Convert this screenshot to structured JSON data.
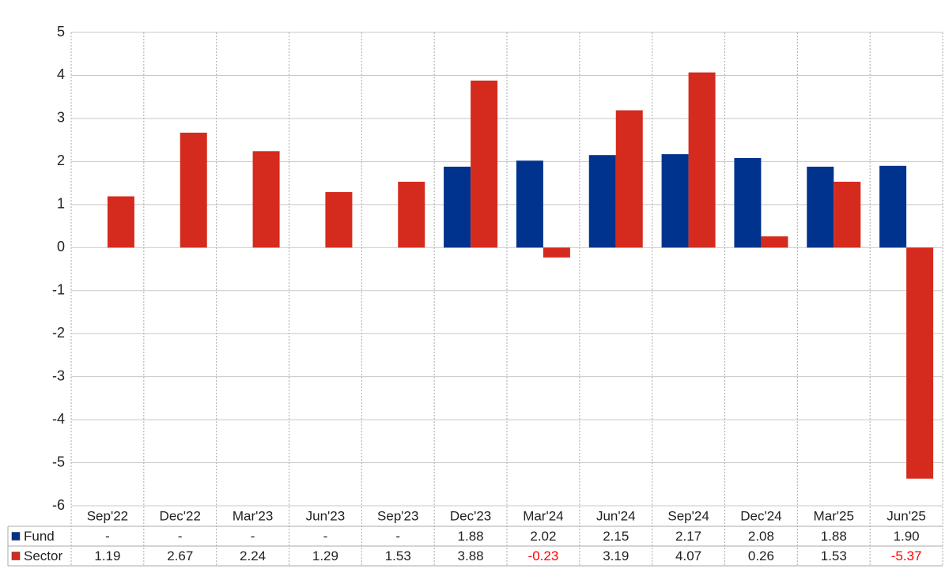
{
  "chart_data": {
    "type": "bar",
    "categories": [
      "Sep'22",
      "Dec'22",
      "Mar'23",
      "Jun'23",
      "Sep'23",
      "Dec'23",
      "Mar'24",
      "Jun'24",
      "Sep'24",
      "Dec'24",
      "Mar'25",
      "Jun'25"
    ],
    "series": [
      {
        "name": "Fund",
        "color": "#00338d",
        "values": [
          null,
          null,
          null,
          null,
          null,
          1.88,
          2.02,
          2.15,
          2.17,
          2.08,
          1.88,
          1.9
        ],
        "value_labels": [
          "-",
          "-",
          "-",
          "-",
          "-",
          "1.88",
          "2.02",
          "2.15",
          "2.17",
          "2.08",
          "1.88",
          "1.90"
        ]
      },
      {
        "name": "Sector",
        "color": "#d52b1e",
        "values": [
          1.19,
          2.67,
          2.24,
          1.29,
          1.53,
          3.88,
          -0.23,
          3.19,
          4.07,
          0.26,
          1.53,
          -5.37
        ],
        "value_labels": [
          "1.19",
          "2.67",
          "2.24",
          "1.29",
          "1.53",
          "3.88",
          "-0.23",
          "3.19",
          "4.07",
          "0.26",
          "1.53",
          "-5.37"
        ]
      }
    ],
    "ylim": [
      -6,
      5
    ],
    "yticks": [
      -6,
      -5,
      -4,
      -3,
      -2,
      -1,
      0,
      1,
      2,
      3,
      4,
      5
    ],
    "grid": true,
    "negative_label_color": "#ff0000"
  }
}
